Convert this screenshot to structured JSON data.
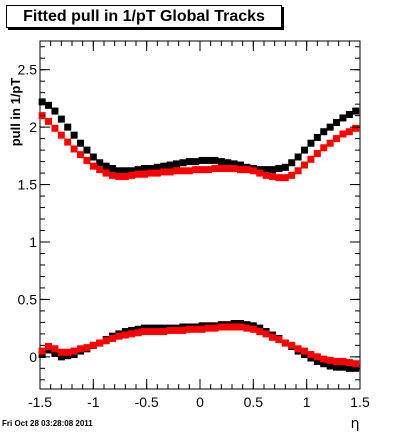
{
  "chart_data": {
    "type": "scatter",
    "title": "Fitted pull in 1/pT  Global Tracks",
    "xlabel": "η",
    "ylabel": "pull in 1/pT",
    "xlim": [
      -1.5,
      1.5
    ],
    "ylim": [
      -0.28,
      2.75
    ],
    "xticks": [
      -1.5,
      -1,
      -0.5,
      0,
      0.5,
      1,
      1.5
    ],
    "xtick_labels": [
      "-1.5",
      "-1",
      "-0.5",
      "0",
      "0.5",
      "1",
      "1.5"
    ],
    "yticks": [
      0,
      0.5,
      1,
      1.5,
      2,
      2.5
    ],
    "ytick_labels": [
      "0",
      "0.5",
      "1",
      "1.5",
      "2",
      "2.5"
    ],
    "grid": false,
    "legend": "none",
    "timestamp": "Fri Oct 28 03:28:08 2011",
    "series": [
      {
        "color": "#000000",
        "marker": "square",
        "x": [
          -1.48,
          -1.42,
          -1.36,
          -1.3,
          -1.24,
          -1.18,
          -1.12,
          -1.06,
          -1.0,
          -0.94,
          -0.88,
          -0.82,
          -0.76,
          -0.7,
          -0.64,
          -0.58,
          -0.52,
          -0.46,
          -0.4,
          -0.34,
          -0.28,
          -0.22,
          -0.16,
          -0.1,
          -0.04,
          0.02,
          0.08,
          0.14,
          0.2,
          0.26,
          0.32,
          0.38,
          0.44,
          0.5,
          0.56,
          0.62,
          0.68,
          0.74,
          0.8,
          0.86,
          0.92,
          0.98,
          1.04,
          1.1,
          1.16,
          1.22,
          1.28,
          1.34,
          1.4,
          1.46
        ],
        "y": [
          2.22,
          2.19,
          2.14,
          2.07,
          2.0,
          1.93,
          1.86,
          1.8,
          1.74,
          1.69,
          1.66,
          1.64,
          1.62,
          1.62,
          1.62,
          1.63,
          1.64,
          1.64,
          1.65,
          1.66,
          1.67,
          1.68,
          1.69,
          1.7,
          1.7,
          1.71,
          1.71,
          1.71,
          1.7,
          1.69,
          1.68,
          1.67,
          1.65,
          1.64,
          1.63,
          1.63,
          1.63,
          1.64,
          1.65,
          1.69,
          1.74,
          1.8,
          1.86,
          1.91,
          1.96,
          2.0,
          2.04,
          2.08,
          2.11,
          2.14
        ]
      },
      {
        "color": "#ff0000",
        "marker": "square",
        "x": [
          -1.48,
          -1.42,
          -1.36,
          -1.3,
          -1.24,
          -1.18,
          -1.12,
          -1.06,
          -1.0,
          -0.94,
          -0.88,
          -0.82,
          -0.76,
          -0.7,
          -0.64,
          -0.58,
          -0.52,
          -0.46,
          -0.4,
          -0.34,
          -0.28,
          -0.22,
          -0.16,
          -0.1,
          -0.04,
          0.02,
          0.08,
          0.14,
          0.2,
          0.26,
          0.32,
          0.38,
          0.44,
          0.5,
          0.56,
          0.62,
          0.68,
          0.74,
          0.8,
          0.86,
          0.92,
          0.98,
          1.04,
          1.1,
          1.16,
          1.22,
          1.28,
          1.34,
          1.4,
          1.46
        ],
        "y": [
          2.1,
          2.05,
          1.99,
          1.93,
          1.87,
          1.81,
          1.76,
          1.71,
          1.66,
          1.63,
          1.6,
          1.58,
          1.57,
          1.57,
          1.58,
          1.59,
          1.59,
          1.6,
          1.6,
          1.61,
          1.61,
          1.62,
          1.62,
          1.62,
          1.63,
          1.63,
          1.63,
          1.64,
          1.64,
          1.64,
          1.64,
          1.63,
          1.63,
          1.62,
          1.6,
          1.58,
          1.57,
          1.56,
          1.56,
          1.58,
          1.62,
          1.67,
          1.72,
          1.77,
          1.82,
          1.86,
          1.9,
          1.94,
          1.96,
          1.99
        ]
      },
      {
        "color": "#000000",
        "marker": "square",
        "x": [
          -1.48,
          -1.42,
          -1.36,
          -1.3,
          -1.24,
          -1.18,
          -1.12,
          -1.06,
          -1.0,
          -0.94,
          -0.88,
          -0.82,
          -0.76,
          -0.7,
          -0.64,
          -0.58,
          -0.52,
          -0.46,
          -0.4,
          -0.34,
          -0.28,
          -0.22,
          -0.16,
          -0.1,
          -0.04,
          0.02,
          0.08,
          0.14,
          0.2,
          0.26,
          0.32,
          0.38,
          0.44,
          0.5,
          0.56,
          0.62,
          0.68,
          0.74,
          0.8,
          0.86,
          0.92,
          0.98,
          1.04,
          1.1,
          1.16,
          1.22,
          1.28,
          1.34,
          1.4,
          1.46
        ],
        "y": [
          0.02,
          0.06,
          0.03,
          0.0,
          0.01,
          0.02,
          0.05,
          0.07,
          0.1,
          0.12,
          0.15,
          0.18,
          0.2,
          0.22,
          0.23,
          0.24,
          0.25,
          0.25,
          0.25,
          0.25,
          0.25,
          0.25,
          0.26,
          0.26,
          0.26,
          0.27,
          0.27,
          0.27,
          0.28,
          0.28,
          0.29,
          0.29,
          0.28,
          0.27,
          0.25,
          0.22,
          0.19,
          0.16,
          0.12,
          0.09,
          0.05,
          0.02,
          -0.01,
          -0.04,
          -0.06,
          -0.08,
          -0.09,
          -0.09,
          -0.1,
          -0.1
        ]
      },
      {
        "color": "#ff0000",
        "marker": "square",
        "x": [
          -1.48,
          -1.42,
          -1.36,
          -1.3,
          -1.24,
          -1.18,
          -1.12,
          -1.06,
          -1.0,
          -0.94,
          -0.88,
          -0.82,
          -0.76,
          -0.7,
          -0.64,
          -0.58,
          -0.52,
          -0.46,
          -0.4,
          -0.34,
          -0.28,
          -0.22,
          -0.16,
          -0.1,
          -0.04,
          0.02,
          0.08,
          0.14,
          0.2,
          0.26,
          0.32,
          0.38,
          0.44,
          0.5,
          0.56,
          0.62,
          0.68,
          0.74,
          0.8,
          0.86,
          0.92,
          0.98,
          1.04,
          1.1,
          1.16,
          1.22,
          1.28,
          1.34,
          1.4,
          1.46
        ],
        "y": [
          0.05,
          0.09,
          0.07,
          0.04,
          0.04,
          0.05,
          0.07,
          0.08,
          0.1,
          0.12,
          0.14,
          0.16,
          0.18,
          0.19,
          0.2,
          0.21,
          0.22,
          0.22,
          0.22,
          0.22,
          0.23,
          0.23,
          0.23,
          0.24,
          0.24,
          0.24,
          0.25,
          0.25,
          0.26,
          0.26,
          0.26,
          0.26,
          0.25,
          0.24,
          0.22,
          0.2,
          0.17,
          0.15,
          0.12,
          0.1,
          0.07,
          0.05,
          0.02,
          0.0,
          -0.02,
          -0.03,
          -0.04,
          -0.04,
          -0.05,
          -0.06
        ]
      }
    ]
  }
}
